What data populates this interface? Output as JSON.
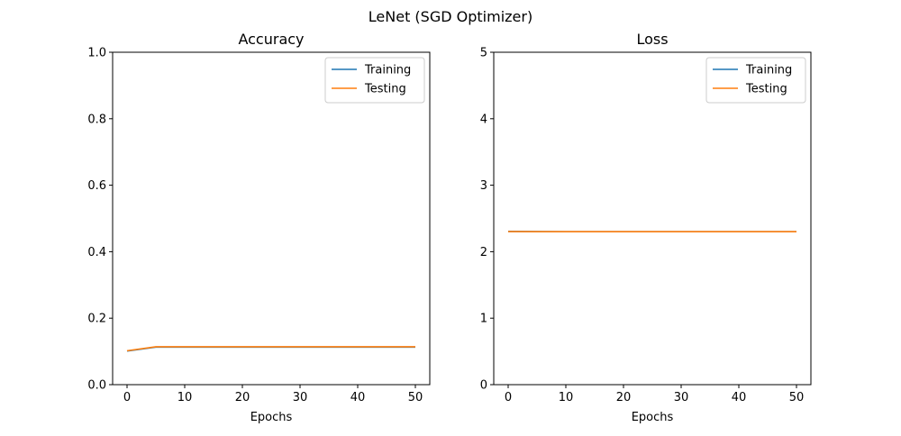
{
  "figure": {
    "suptitle": "LeNet (SGD Optimizer)"
  },
  "colors": {
    "training": "#1f77b4",
    "testing": "#ff7f0e"
  },
  "chart_data": [
    {
      "type": "line",
      "title": "Accuracy",
      "xlabel": "Epochs",
      "ylabel": "",
      "xlim": [
        -2.5,
        52.5
      ],
      "ylim": [
        0,
        1
      ],
      "xticks": [
        0,
        10,
        20,
        30,
        40,
        50
      ],
      "yticks": [
        0.0,
        0.2,
        0.4,
        0.6,
        0.8,
        1.0
      ],
      "ytick_labels": [
        "0.0",
        "0.2",
        "0.4",
        "0.6",
        "0.8",
        "1.0"
      ],
      "grid": false,
      "legend": "top-right",
      "x": [
        0,
        5,
        10,
        15,
        20,
        25,
        30,
        35,
        40,
        45,
        50
      ],
      "series": [
        {
          "name": "Training",
          "values": [
            0.101,
            0.113,
            0.113,
            0.113,
            0.113,
            0.113,
            0.113,
            0.113,
            0.113,
            0.113,
            0.113
          ]
        },
        {
          "name": "Testing",
          "values": [
            0.102,
            0.114,
            0.114,
            0.114,
            0.114,
            0.114,
            0.114,
            0.114,
            0.114,
            0.114,
            0.114
          ]
        }
      ]
    },
    {
      "type": "line",
      "title": "Loss",
      "xlabel": "Epochs",
      "ylabel": "",
      "xlim": [
        -2.5,
        52.5
      ],
      "ylim": [
        0,
        5
      ],
      "xticks": [
        0,
        10,
        20,
        30,
        40,
        50
      ],
      "yticks": [
        0,
        1,
        2,
        3,
        4,
        5
      ],
      "ytick_labels": [
        "0",
        "1",
        "2",
        "3",
        "4",
        "5"
      ],
      "grid": false,
      "legend": "top-right",
      "x": [
        0,
        5,
        10,
        15,
        20,
        25,
        30,
        35,
        40,
        45,
        50
      ],
      "series": [
        {
          "name": "Training",
          "values": [
            2.305,
            2.302,
            2.301,
            2.301,
            2.301,
            2.301,
            2.301,
            2.301,
            2.301,
            2.301,
            2.301
          ]
        },
        {
          "name": "Testing",
          "values": [
            2.303,
            2.301,
            2.301,
            2.301,
            2.301,
            2.301,
            2.301,
            2.301,
            2.301,
            2.301,
            2.301
          ]
        }
      ]
    }
  ]
}
